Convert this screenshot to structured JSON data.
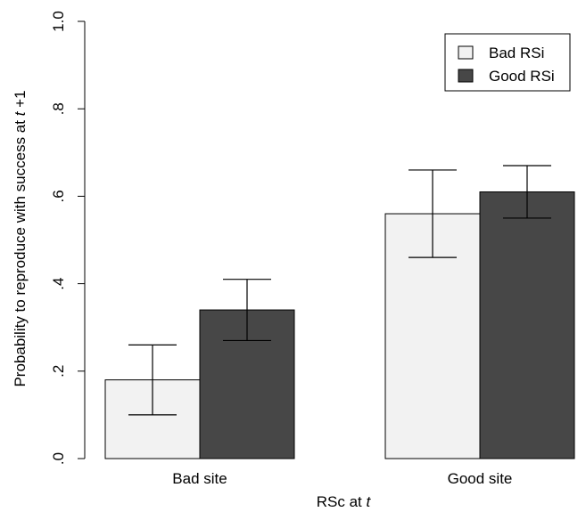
{
  "chart_data": {
    "type": "bar",
    "categories": [
      "Bad site",
      "Good site"
    ],
    "series": [
      {
        "name": "Bad RSi",
        "values": [
          0.18,
          0.56
        ],
        "error_low": [
          0.1,
          0.46
        ],
        "error_high": [
          0.26,
          0.66
        ],
        "color": "#f2f2f2"
      },
      {
        "name": "Good RSi",
        "values": [
          0.34,
          0.61
        ],
        "error_low": [
          0.27,
          0.55
        ],
        "error_high": [
          0.41,
          0.67
        ],
        "color": "#474747"
      }
    ],
    "xlabel_main": "RSc at ",
    "xlabel_italic": "t",
    "ylabel_main": "Probability to reproduce with success at ",
    "ylabel_italic": "t",
    "ylabel_suffix": " +1",
    "ylim": [
      0,
      1
    ],
    "yticks": [
      0,
      0.2,
      0.4,
      0.6,
      0.8,
      1.0
    ],
    "ytick_labels": [
      ".0",
      ".2",
      ".4",
      ".6",
      ".8",
      "1.0"
    ],
    "legend_position": "top-right",
    "grid": false
  }
}
